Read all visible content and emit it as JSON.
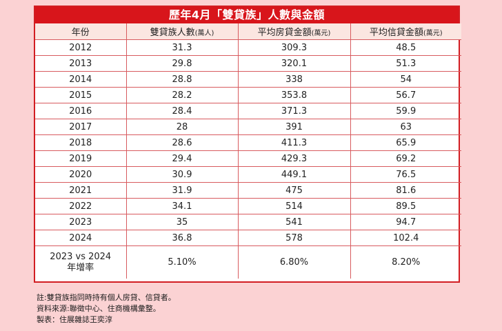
{
  "table": {
    "title": "歷年4月「雙貸族」人數與金額",
    "headers": [
      {
        "label": "年份",
        "unit": ""
      },
      {
        "label": "雙貸族人數",
        "unit": "(萬人)"
      },
      {
        "label": "平均房貸金額",
        "unit": "(萬元)"
      },
      {
        "label": "平均信貸金額",
        "unit": "(萬元)"
      }
    ],
    "rows": [
      [
        "2012",
        "31.3",
        "309.3",
        "48.5"
      ],
      [
        "2013",
        "29.8",
        "320.1",
        "51.3"
      ],
      [
        "2014",
        "28.8",
        "338",
        "54"
      ],
      [
        "2015",
        "28.2",
        "353.8",
        "56.7"
      ],
      [
        "2016",
        "28.4",
        "371.3",
        "59.9"
      ],
      [
        "2017",
        "28",
        "391",
        "63"
      ],
      [
        "2018",
        "28.6",
        "411.3",
        "65.9"
      ],
      [
        "2019",
        "29.4",
        "429.3",
        "69.2"
      ],
      [
        "2020",
        "30.9",
        "449.1",
        "76.5"
      ],
      [
        "2021",
        "31.9",
        "475",
        "81.6"
      ],
      [
        "2022",
        "34.1",
        "514",
        "89.5"
      ],
      [
        "2023",
        "35",
        "541",
        "94.7"
      ],
      [
        "2024",
        "36.8",
        "578",
        "102.4"
      ]
    ],
    "summary": {
      "label_line1": "2023 vs 2024",
      "label_line2": "年增率",
      "values": [
        "5.10%",
        "6.80%",
        "8.20%"
      ]
    }
  },
  "notes": {
    "note": "註:雙貸族指同時持有個人房貸、信貸者。",
    "source": "資料來源:聯徵中心、住商機構彙整。",
    "credit": "製表：住展雜誌王奕淳"
  },
  "colors": {
    "background": "#fbd2d3",
    "title_bar": "#d8151b",
    "header_bg": "#fbe6e1",
    "border": "#d85a5e"
  }
}
